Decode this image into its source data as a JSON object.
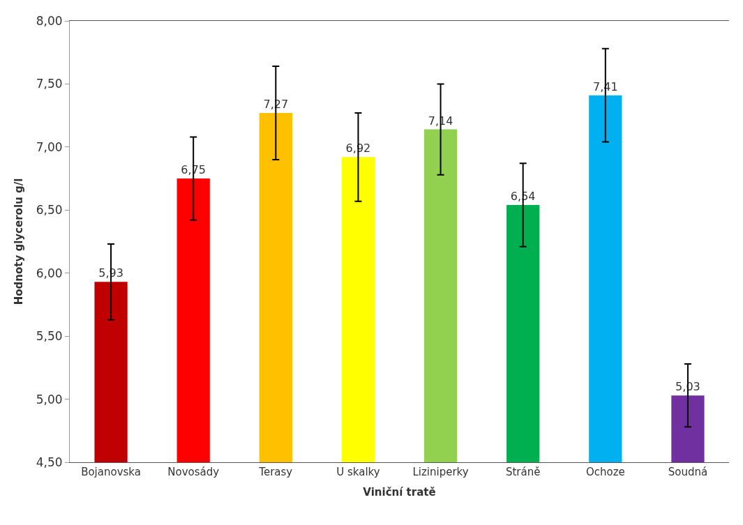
{
  "chart_data": {
    "type": "bar",
    "xlabel": "Viniční tratě",
    "ylabel": "Hodnoty glycerolu g/l",
    "categories": [
      "Bojanovska",
      "Novosády",
      "Terasy",
      "U skalky",
      "Liziniperky",
      "Stráně",
      "Ochoze",
      "Soudná"
    ],
    "values": [
      5.93,
      6.75,
      7.27,
      6.92,
      7.14,
      6.54,
      7.41,
      5.03
    ],
    "colors": [
      "#c00000",
      "#ff0000",
      "#ffc000",
      "#ffff00",
      "#92d050",
      "#00b050",
      "#00b0f0",
      "#7030a0"
    ],
    "errors": [
      0.3,
      0.33,
      0.37,
      0.35,
      0.36,
      0.33,
      0.37,
      0.25
    ],
    "value_labels": [
      "5,93",
      "6,75",
      "7,27",
      "6,92",
      "7,14",
      "6,54",
      "7,41",
      "5,03"
    ],
    "ylim": [
      4.5,
      8.0
    ],
    "yticks": [
      {
        "value": 4.5,
        "label": "4,50"
      },
      {
        "value": 5.0,
        "label": "5,00"
      },
      {
        "value": 5.5,
        "label": "5,50"
      },
      {
        "value": 6.0,
        "label": "6,00"
      },
      {
        "value": 6.5,
        "label": "6,50"
      },
      {
        "value": 7.0,
        "label": "7,00"
      },
      {
        "value": 7.5,
        "label": "7,50"
      },
      {
        "value": 8.0,
        "label": "8,00"
      }
    ],
    "tick_labels": "xy"
  }
}
